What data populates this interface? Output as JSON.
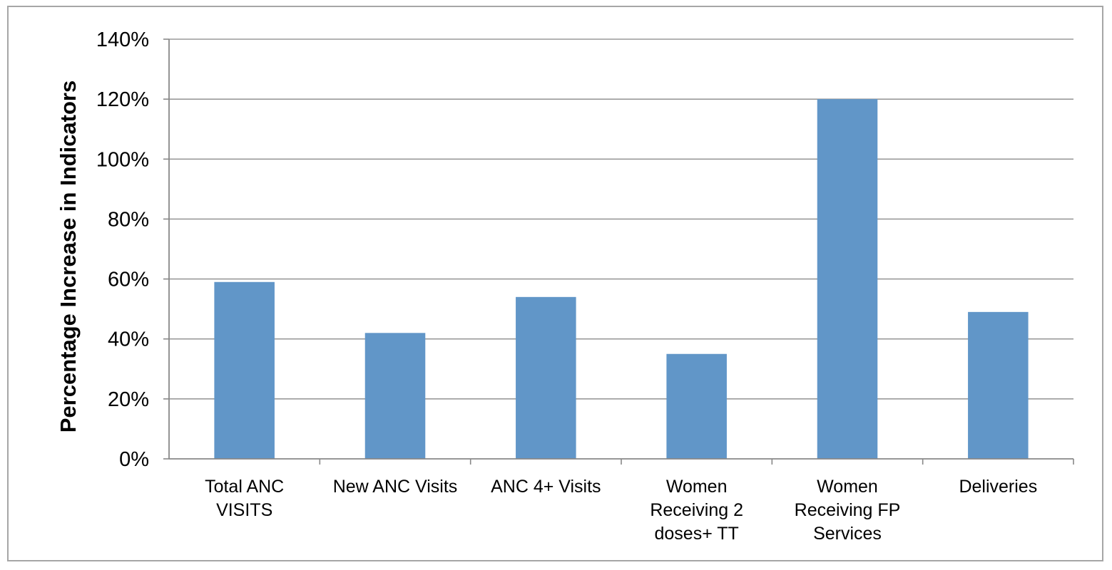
{
  "chart_data": {
    "type": "bar",
    "title": "",
    "xlabel": "",
    "ylabel": "Percentage Increase in Indicators",
    "categories": [
      [
        "Total ANC",
        "VISITS"
      ],
      [
        "New ANC Visits"
      ],
      [
        "ANC 4+ Visits"
      ],
      [
        "Women",
        "Receiving 2",
        "doses+ TT"
      ],
      [
        "Women",
        "Receiving FP",
        "Services"
      ],
      [
        "Deliveries"
      ]
    ],
    "values": [
      59,
      42,
      54,
      35,
      120,
      49
    ],
    "ylim": [
      0,
      140
    ],
    "yticks": [
      0,
      20,
      40,
      60,
      80,
      100,
      120,
      140
    ],
    "ytick_labels": [
      "0%",
      "20%",
      "40%",
      "60%",
      "80%",
      "100%",
      "120%",
      "140%"
    ],
    "grid": true,
    "legend": "none",
    "colors": {
      "bar": "#6196c8",
      "grid": "#9a9a9a",
      "axis": "#888888",
      "frame": "#a6a6a6"
    }
  }
}
